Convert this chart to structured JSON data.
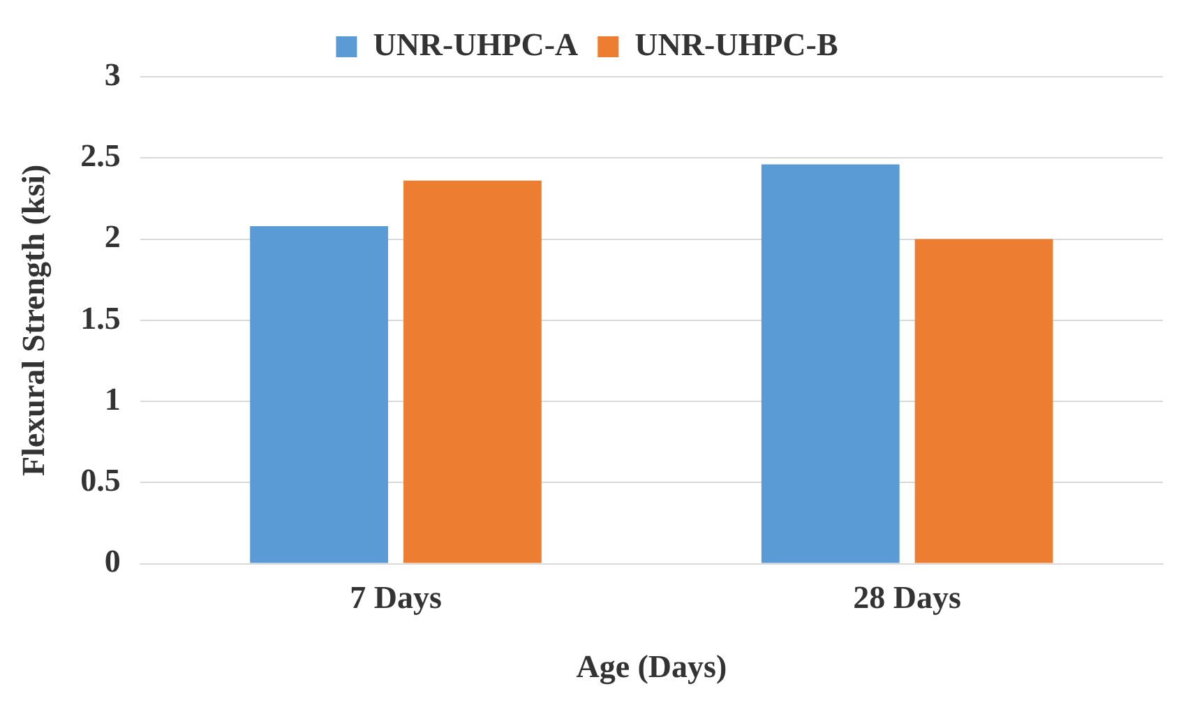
{
  "chart_data": {
    "type": "bar",
    "xlabel": "Age (Days)",
    "ylabel": "Flexural Strength (ksi)",
    "categories": [
      "7 Days",
      "28 Days"
    ],
    "series": [
      {
        "name": "UNR-UHPC-A",
        "color": "#5b9bd5",
        "values": [
          2.08,
          2.46
        ]
      },
      {
        "name": "UNR-UHPC-B",
        "color": "#ed7d31",
        "values": [
          2.36,
          2.0
        ]
      }
    ],
    "ylim": [
      0,
      3
    ],
    "yticks": [
      0,
      0.5,
      1,
      1.5,
      2,
      2.5,
      3
    ],
    "grid": "y",
    "legend": "top"
  }
}
